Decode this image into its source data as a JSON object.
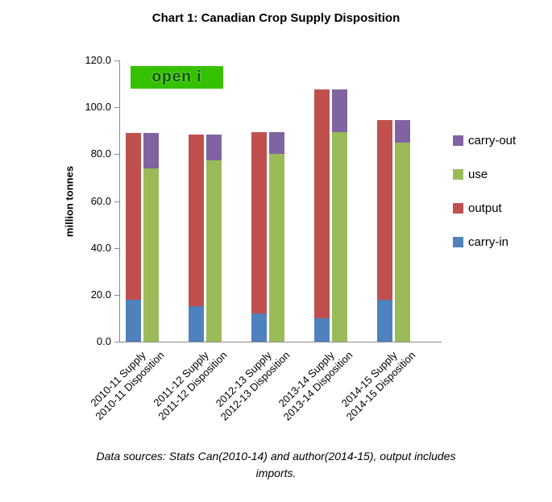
{
  "title": "Chart 1: Canadian Crop Supply Disposition",
  "watermark": {
    "text": "open i",
    "background": "#35c100",
    "text_color": "#0a5a00"
  },
  "footnote": "Data sources:  Stats Can(2010-14) and author(2014-15), output includes imports.",
  "chart_data": {
    "type": "bar",
    "stacked": true,
    "title": "Chart 1: Canadian Crop Supply Disposition",
    "xlabel": "",
    "ylabel": "million tonnes",
    "ylim": [
      0,
      120
    ],
    "ytick_step": 20,
    "ytick_decimals": 1,
    "grid": false,
    "legend_position": "right",
    "categories": [
      "2010-11 Supply",
      "2010-11 Disposition",
      "2011-12 Supply",
      "2011-12 Disposition",
      "2012-13 Supply",
      "2012-13 Disposition",
      "2013-14 Supply",
      "2013-14 Disposition",
      "2014-15 Supply",
      "2014-15 Disposition"
    ],
    "series": [
      {
        "name": "carry-in",
        "color": "#4F81BD",
        "values": [
          18,
          0,
          15,
          0,
          12,
          0,
          10,
          0,
          18,
          0
        ]
      },
      {
        "name": "output",
        "color": "#C0504D",
        "values": [
          71,
          0,
          73.5,
          0,
          77.5,
          0,
          97.5,
          0,
          76.5,
          0
        ]
      },
      {
        "name": "use",
        "color": "#9BBB59",
        "values": [
          0,
          74,
          0,
          77.5,
          0,
          80,
          0,
          89.5,
          0,
          85
        ]
      },
      {
        "name": "carry-out",
        "color": "#8064A2",
        "values": [
          0,
          15,
          0,
          11,
          0,
          9.5,
          0,
          18,
          0,
          9.5
        ]
      }
    ],
    "legend": [
      "carry-out",
      "use",
      "output",
      "carry-in"
    ]
  }
}
